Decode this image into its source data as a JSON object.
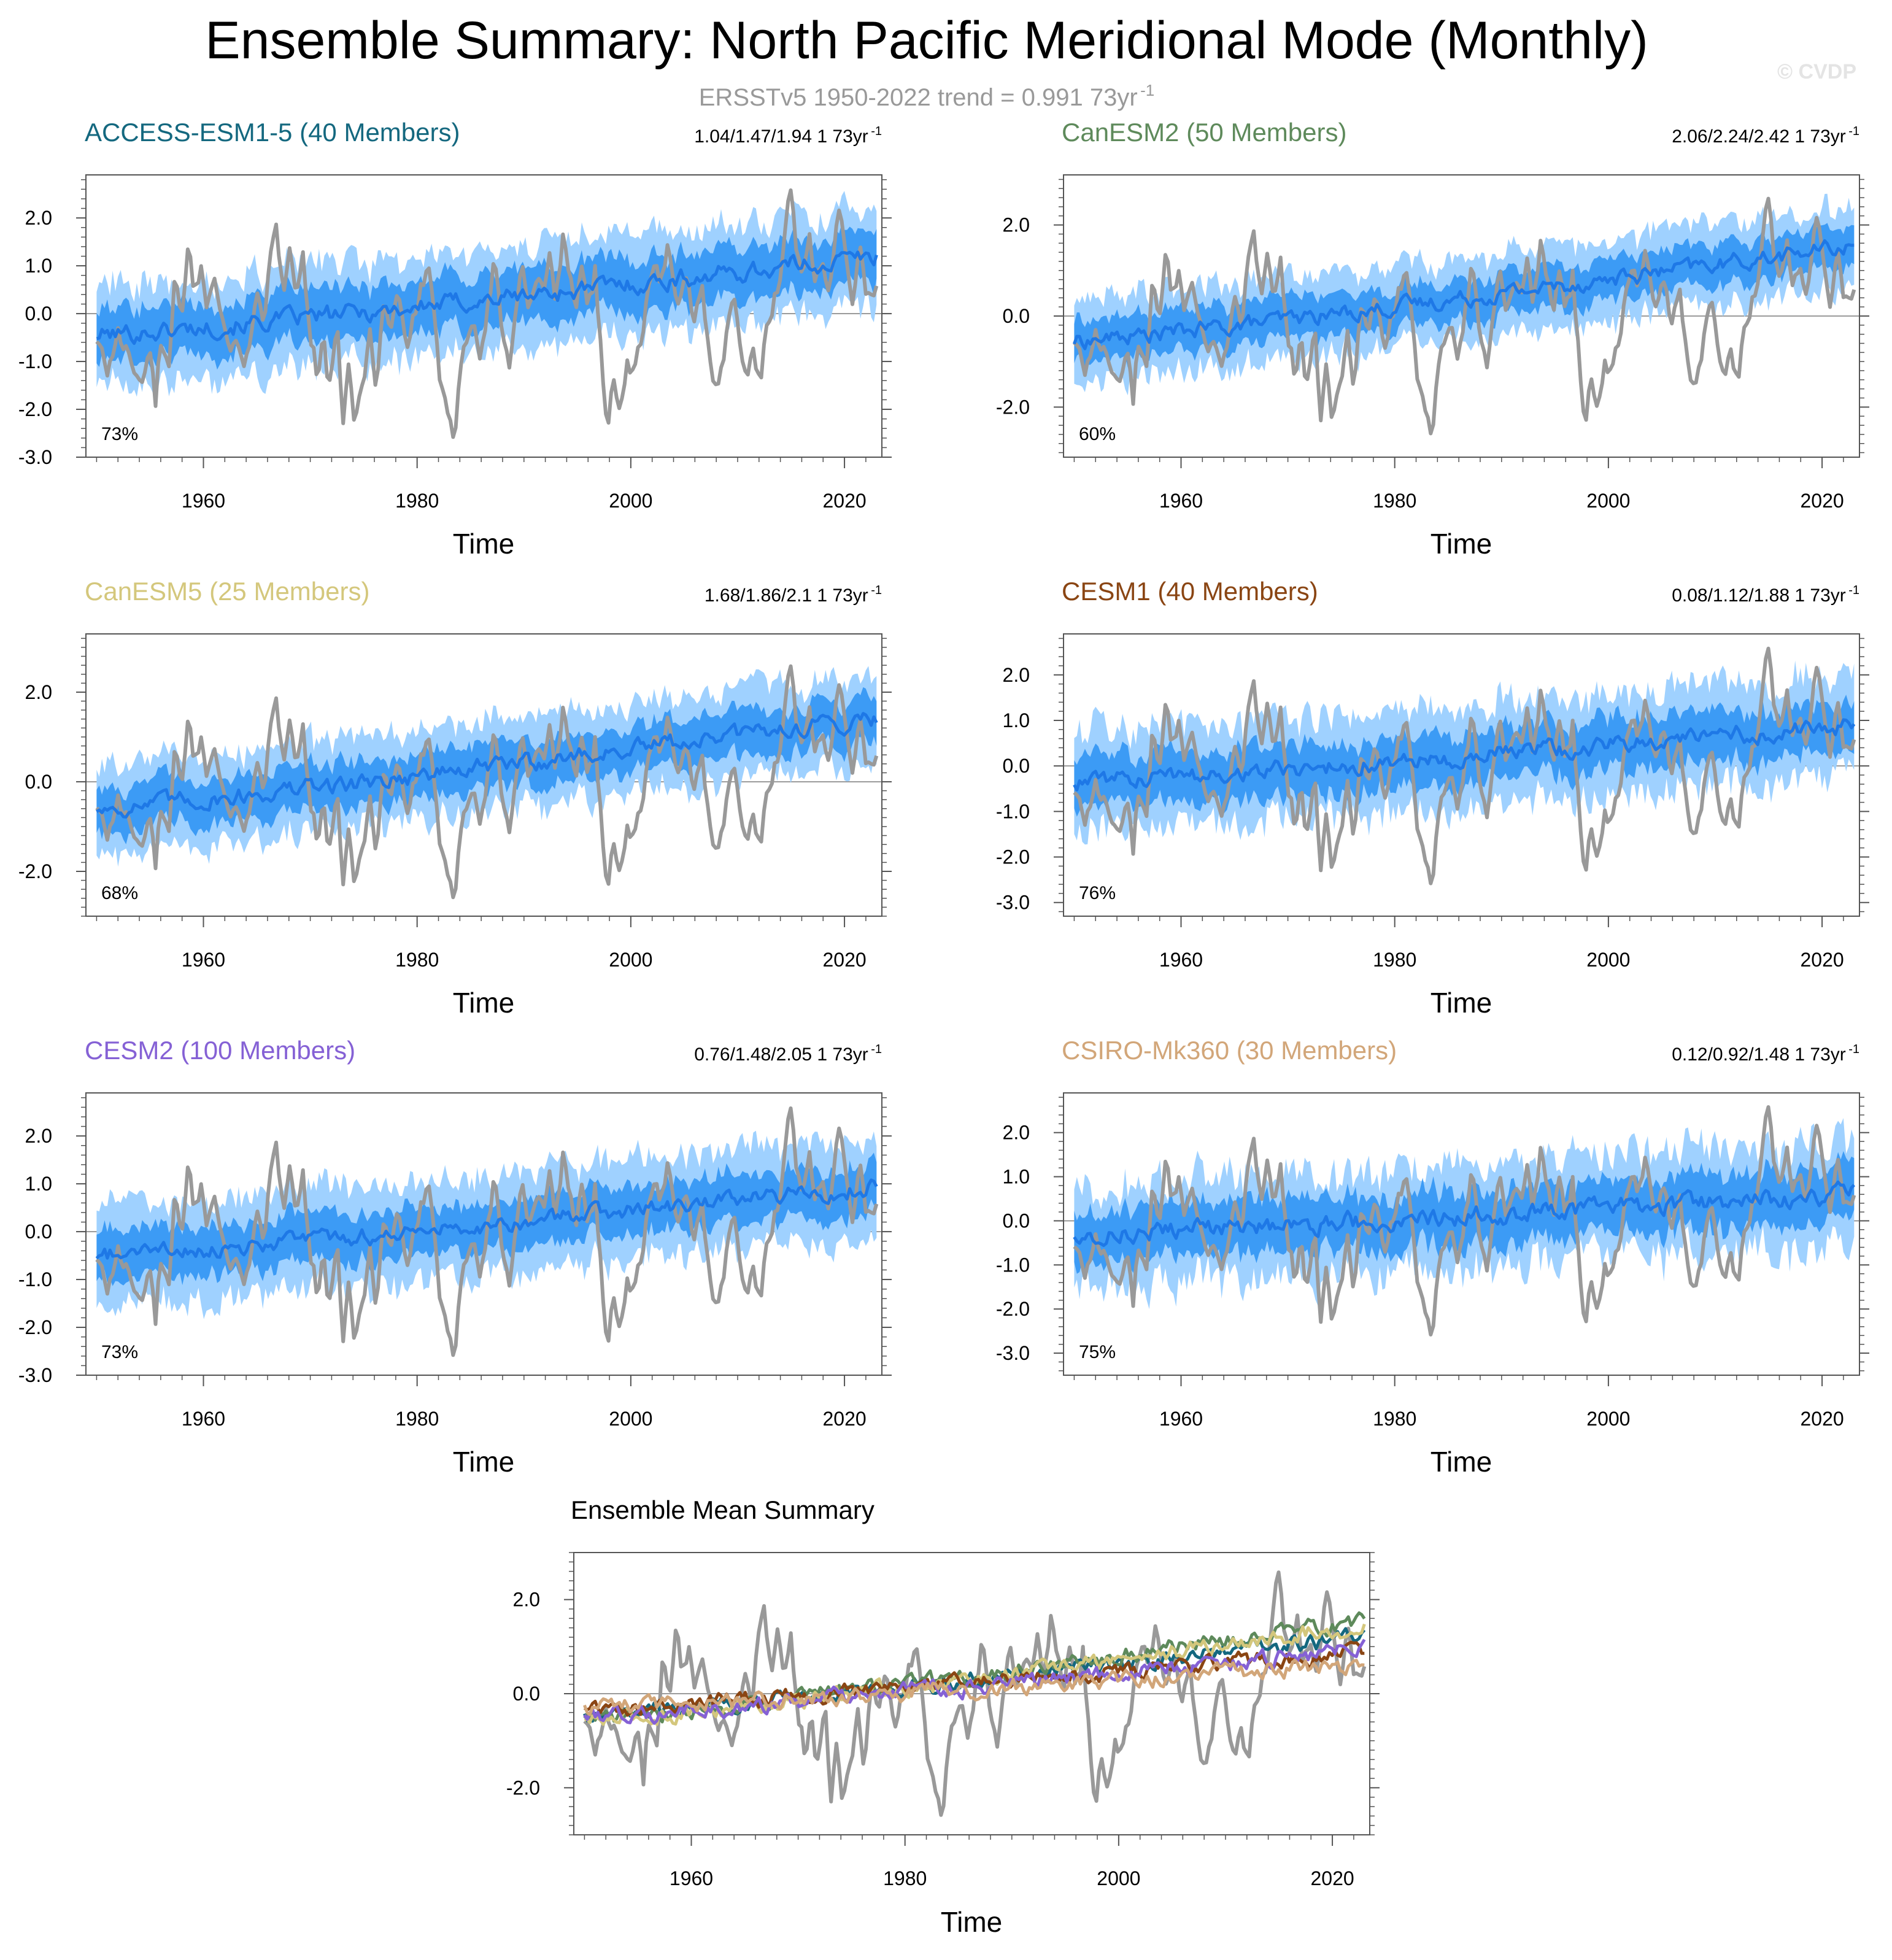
{
  "figure": {
    "title": "Ensemble Summary: North Pacific Meridional Mode (Monthly)",
    "subtitle": "ERSSTv5 1950-2022 trend = 0.991 73yr",
    "subtitle_sup": "-1",
    "watermark": "© CVDP"
  },
  "colors": {
    "observations": "#999999",
    "spread_outer": "#9fd1ff",
    "spread_inner": "#3c9bf5",
    "ensemble_mean": "#1e78e6",
    "zero_line": "#7a7a7a"
  },
  "chart_data": [
    {
      "type": "line",
      "title": "ACCESS-ESM1-5 (40 Members)",
      "title_color": "#14687f",
      "trend_label": "1.04/1.47/1.94 1 73yr",
      "trend_sup": "-1",
      "percent_label": "73%",
      "xlabel": "Time",
      "xlim": [
        1949,
        2023.5
      ],
      "xticks": [
        1960,
        1980,
        2000,
        2020
      ],
      "xtick_labels": [
        "1960",
        "1980",
        "2000",
        "2020"
      ],
      "ylim": [
        -3.0,
        2.9
      ],
      "yticks": [
        -3,
        -2,
        -1,
        0,
        1,
        2
      ],
      "ytick_labels": [
        "-3.0",
        "-2.0",
        "-1.0",
        "0.0",
        "1.0",
        "2.0"
      ],
      "mean_trend": [
        -0.45,
        1.2
      ],
      "band_inner": 0.55,
      "band_outer": 1.05,
      "mean_noise": 0.2,
      "band_noise": 0.12
    },
    {
      "type": "line",
      "title": "CanESM2 (50 Members)",
      "title_color": "#5e8a5b",
      "trend_label": "2.06/2.24/2.42 1 73yr",
      "trend_sup": "-1",
      "percent_label": "60%",
      "xlabel": "Time",
      "xlim": [
        1949,
        2023.5
      ],
      "xticks": [
        1960,
        1980,
        2000,
        2020
      ],
      "xtick_labels": [
        "1960",
        "1980",
        "2000",
        "2020"
      ],
      "ylim": [
        -3.1,
        3.1
      ],
      "yticks": [
        -2,
        0,
        2
      ],
      "ytick_labels": [
        "-2.0",
        "0.0",
        "2.0"
      ],
      "mean_trend": [
        -0.55,
        1.55
      ],
      "band_inner": 0.45,
      "band_outer": 0.9,
      "mean_noise": 0.18,
      "band_noise": 0.1
    },
    {
      "type": "line",
      "title": "CanESM5 (25 Members)",
      "title_color": "#d4c77c",
      "trend_label": "1.68/1.86/2.1 1 73yr",
      "trend_sup": "-1",
      "percent_label": "68%",
      "xlabel": "Time",
      "xlim": [
        1949,
        2023.5
      ],
      "xticks": [
        1960,
        1980,
        2000,
        2020
      ],
      "xtick_labels": [
        "1960",
        "1980",
        "2000",
        "2020"
      ],
      "ylim": [
        -3.0,
        3.3
      ],
      "yticks": [
        -2,
        0,
        2
      ],
      "ytick_labels": [
        "-2.0",
        "0.0",
        "2.0"
      ],
      "mean_trend": [
        -0.6,
        1.45
      ],
      "band_inner": 0.5,
      "band_outer": 1.0,
      "mean_noise": 0.2,
      "band_noise": 0.12
    },
    {
      "type": "line",
      "title": "CESM1 (40 Members)",
      "title_color": "#8a4513",
      "trend_label": "0.08/1.12/1.88 1 73yr",
      "trend_sup": "-1",
      "percent_label": "76%",
      "xlabel": "Time",
      "xlim": [
        1949,
        2023.5
      ],
      "xticks": [
        1960,
        1980,
        2000,
        2020
      ],
      "xtick_labels": [
        "1960",
        "1980",
        "2000",
        "2020"
      ],
      "ylim": [
        -3.3,
        2.9
      ],
      "yticks": [
        -3,
        -2,
        -1,
        0,
        1,
        2
      ],
      "ytick_labels": [
        "-3.0",
        "-2.0",
        "-1.0",
        "0.0",
        "1.0",
        "2.0"
      ],
      "mean_trend": [
        -0.35,
        0.9
      ],
      "band_inner": 0.55,
      "band_outer": 1.1,
      "mean_noise": 0.2,
      "band_noise": 0.15
    },
    {
      "type": "line",
      "title": "CESM2 (100 Members)",
      "title_color": "#8561d5",
      "trend_label": "0.76/1.48/2.05 1 73yr",
      "trend_sup": "-1",
      "percent_label": "73%",
      "xlabel": "Time",
      "xlim": [
        1949,
        2023.5
      ],
      "xticks": [
        1960,
        1980,
        2000,
        2020
      ],
      "xtick_labels": [
        "1960",
        "1980",
        "2000",
        "2020"
      ],
      "ylim": [
        -3.0,
        2.9
      ],
      "yticks": [
        -3,
        -2,
        -1,
        0,
        1,
        2
      ],
      "ytick_labels": [
        "-3.0",
        "-2.0",
        "-1.0",
        "0.0",
        "1.0",
        "2.0"
      ],
      "mean_trend": [
        -0.5,
        0.95
      ],
      "band_inner": 0.5,
      "band_outer": 1.05,
      "mean_noise": 0.18,
      "band_noise": 0.12
    },
    {
      "type": "line",
      "title": "CSIRO-Mk360 (30 Members)",
      "title_color": "#d2a679",
      "trend_label": "0.12/0.92/1.48 1 73yr",
      "trend_sup": "-1",
      "percent_label": "75%",
      "xlabel": "Time",
      "xlim": [
        1949,
        2023.5
      ],
      "xticks": [
        1960,
        1980,
        2000,
        2020
      ],
      "xtick_labels": [
        "1960",
        "1980",
        "2000",
        "2020"
      ],
      "ylim": [
        -3.5,
        2.9
      ],
      "yticks": [
        -3,
        -2,
        -1,
        0,
        1,
        2
      ],
      "ytick_labels": [
        "-3.0",
        "-2.0",
        "-1.0",
        "0.0",
        "1.0",
        "2.0"
      ],
      "mean_trend": [
        -0.3,
        0.6
      ],
      "band_inner": 0.6,
      "band_outer": 1.15,
      "mean_noise": 0.22,
      "band_noise": 0.18
    },
    {
      "type": "line",
      "title": "Ensemble Mean Summary",
      "title_color": "#000000",
      "xlabel": "Time",
      "xlim": [
        1949,
        2023.5
      ],
      "xticks": [
        1960,
        1980,
        2000,
        2020
      ],
      "xtick_labels": [
        "1960",
        "1980",
        "2000",
        "2020"
      ],
      "ylim": [
        -3.0,
        3.0
      ],
      "yticks": [
        -2,
        0,
        2
      ],
      "ytick_labels": [
        "-2.0",
        "0.0",
        "2.0"
      ],
      "series": [
        {
          "name": "ACCESS-ESM1-5",
          "color": "#14687f",
          "trend": [
            -0.45,
            1.2
          ]
        },
        {
          "name": "CanESM2",
          "color": "#5e8a5b",
          "trend": [
            -0.55,
            1.55
          ]
        },
        {
          "name": "CanESM5",
          "color": "#d4c77c",
          "trend": [
            -0.6,
            1.45
          ]
        },
        {
          "name": "CESM1",
          "color": "#8a4513",
          "trend": [
            -0.35,
            0.9
          ]
        },
        {
          "name": "CESM2",
          "color": "#8561d5",
          "trend": [
            -0.5,
            0.95
          ]
        },
        {
          "name": "CSIRO-Mk360",
          "color": "#d2a679",
          "trend": [
            -0.3,
            0.6
          ]
        }
      ]
    }
  ],
  "observations": {
    "name": "ERSSTv5",
    "color": "#999999",
    "keypoints": [
      [
        1950.0,
        -0.6
      ],
      [
        1951.0,
        -1.2
      ],
      [
        1952.0,
        -0.4
      ],
      [
        1953.0,
        -0.9
      ],
      [
        1954.0,
        -1.5
      ],
      [
        1955.0,
        -0.8
      ],
      [
        1955.5,
        -1.9
      ],
      [
        1956.0,
        -0.6
      ],
      [
        1956.8,
        -1.2
      ],
      [
        1957.3,
        0.6
      ],
      [
        1958.0,
        -0.2
      ],
      [
        1958.6,
        1.4
      ],
      [
        1959.2,
        0.4
      ],
      [
        1959.8,
        1.1
      ],
      [
        1960.3,
        0.2
      ],
      [
        1961.0,
        0.9
      ],
      [
        1961.8,
        -0.3
      ],
      [
        1962.5,
        -0.9
      ],
      [
        1963.0,
        -0.3
      ],
      [
        1963.6,
        -1.2
      ],
      [
        1964.3,
        -0.5
      ],
      [
        1965.0,
        0.3
      ],
      [
        1965.6,
        -0.4
      ],
      [
        1966.2,
        1.1
      ],
      [
        1966.8,
        1.6
      ],
      [
        1967.5,
        0.6
      ],
      [
        1968.1,
        1.7
      ],
      [
        1968.7,
        0.3
      ],
      [
        1969.3,
        1.2
      ],
      [
        1970.0,
        -0.3
      ],
      [
        1970.6,
        -1.2
      ],
      [
        1971.2,
        -0.6
      ],
      [
        1971.8,
        -1.6
      ],
      [
        1972.5,
        -0.4
      ],
      [
        1973.1,
        -2.2
      ],
      [
        1973.6,
        -1.0
      ],
      [
        1974.2,
        -2.4
      ],
      [
        1975.0,
        -1.3
      ],
      [
        1975.6,
        -0.4
      ],
      [
        1976.2,
        -1.6
      ],
      [
        1976.9,
        0.3
      ],
      [
        1977.5,
        -0.5
      ],
      [
        1978.2,
        0.4
      ],
      [
        1978.9,
        -0.7
      ],
      [
        1979.6,
        -0.2
      ],
      [
        1980.3,
        0.5
      ],
      [
        1981.0,
        1.0
      ],
      [
        1981.6,
        -0.2
      ],
      [
        1982.3,
        -1.6
      ],
      [
        1982.8,
        -2.0
      ],
      [
        1983.4,
        -2.8
      ],
      [
        1984.0,
        -1.4
      ],
      [
        1984.6,
        -0.6
      ],
      [
        1985.3,
        0.0
      ],
      [
        1986.0,
        -0.8
      ],
      [
        1986.7,
        0.4
      ],
      [
        1987.3,
        1.1
      ],
      [
        1987.9,
        -0.2
      ],
      [
        1988.6,
        -1.2
      ],
      [
        1989.2,
        0.2
      ],
      [
        1989.8,
        0.9
      ],
      [
        1990.5,
        0.2
      ],
      [
        1991.1,
        0.9
      ],
      [
        1991.8,
        0.4
      ],
      [
        1992.4,
        1.3
      ],
      [
        1993.0,
        0.3
      ],
      [
        1993.6,
        1.6
      ],
      [
        1994.2,
        0.8
      ],
      [
        1994.8,
        0.2
      ],
      [
        1995.4,
        1.0
      ],
      [
        1996.0,
        0.2
      ],
      [
        1996.7,
        0.9
      ],
      [
        1997.3,
        -1.2
      ],
      [
        1997.8,
        -2.3
      ],
      [
        1998.4,
        -1.3
      ],
      [
        1999.0,
        -1.9
      ],
      [
        1999.7,
        -0.9
      ],
      [
        2000.3,
        -1.4
      ],
      [
        2001.0,
        -0.4
      ],
      [
        2001.6,
        0.3
      ],
      [
        2002.2,
        1.1
      ],
      [
        2002.8,
        0.5
      ],
      [
        2003.4,
        1.5
      ],
      [
        2004.0,
        0.7
      ],
      [
        2004.6,
        0.2
      ],
      [
        2005.3,
        1.0
      ],
      [
        2006.0,
        -0.3
      ],
      [
        2006.6,
        0.7
      ],
      [
        2007.2,
        -0.6
      ],
      [
        2007.8,
        -1.8
      ],
      [
        2008.4,
        -1.2
      ],
      [
        2009.0,
        -0.4
      ],
      [
        2009.6,
        0.6
      ],
      [
        2010.2,
        -0.6
      ],
      [
        2010.8,
        -1.3
      ],
      [
        2011.5,
        -0.8
      ],
      [
        2012.1,
        -1.6
      ],
      [
        2012.7,
        -0.3
      ],
      [
        2013.3,
        0.2
      ],
      [
        2014.0,
        0.9
      ],
      [
        2014.5,
        1.9
      ],
      [
        2015.0,
        2.7
      ],
      [
        2015.5,
        1.4
      ],
      [
        2016.1,
        0.8
      ],
      [
        2016.7,
        1.9
      ],
      [
        2017.3,
        0.6
      ],
      [
        2017.9,
        1.3
      ],
      [
        2018.5,
        0.3
      ],
      [
        2019.1,
        1.6
      ],
      [
        2019.6,
        2.5
      ],
      [
        2020.2,
        0.9
      ],
      [
        2020.8,
        0.2
      ],
      [
        2021.4,
        1.4
      ],
      [
        2022.0,
        0.3
      ],
      [
        2022.6,
        0.1
      ],
      [
        2023.0,
        0.4
      ]
    ]
  }
}
